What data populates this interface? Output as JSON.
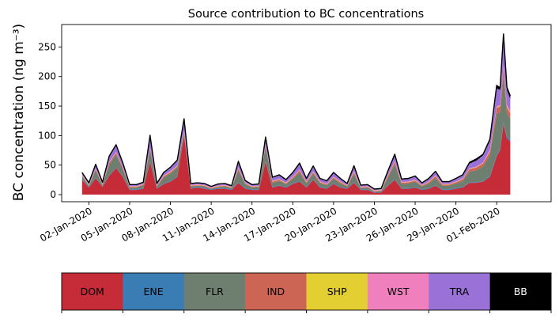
{
  "chart_data": {
    "type": "area",
    "title": "Source contribution to BC concentrations",
    "xlabel": "",
    "ylabel": "BC concentration (ng m⁻³)",
    "ylim": [
      -12,
      288
    ],
    "yticks": [
      0,
      50,
      100,
      150,
      200,
      250
    ],
    "xlim": [
      "2019-12-31",
      "2020-02-05"
    ],
    "xtick_labels": [
      "02-Jan-2020",
      "05-Jan-2020",
      "08-Jan-2020",
      "11-Jan-2020",
      "14-Jan-2020",
      "17-Jan-2020",
      "20-Jan-2020",
      "23-Jan-2020",
      "26-Jan-2020",
      "29-Jan-2020",
      "01-Feb-2020"
    ],
    "x_days_from_jan1": [
      0.5,
      1,
      1.5,
      2,
      2.5,
      3,
      3.5,
      4,
      4.5,
      5,
      5.5,
      6,
      6.5,
      7,
      7.5,
      8,
      8.5,
      9,
      9.5,
      10,
      10.5,
      11,
      11.5,
      12,
      12.5,
      13,
      13.5,
      14,
      14.5,
      15,
      15.5,
      16,
      16.5,
      17,
      17.5,
      18,
      18.5,
      19,
      19.5,
      20,
      20.5,
      21,
      21.5,
      22,
      22.5,
      23,
      23.5,
      24,
      24.5,
      25,
      25.5,
      26,
      26.5,
      27,
      27.5,
      28,
      28.5,
      29,
      29.5,
      30,
      30.5,
      31,
      31.25,
      31.5,
      31.75,
      32
    ],
    "series": [
      {
        "name": "DOM",
        "color": "#c62b38",
        "values": [
          25,
          12,
          28,
          13,
          32,
          45,
          30,
          8,
          8,
          10,
          55,
          10,
          18,
          22,
          30,
          100,
          10,
          12,
          10,
          8,
          10,
          10,
          8,
          20,
          10,
          8,
          8,
          55,
          12,
          15,
          12,
          18,
          22,
          12,
          25,
          12,
          10,
          18,
          12,
          10,
          20,
          8,
          8,
          3,
          4,
          15,
          25,
          10,
          10,
          12,
          8,
          10,
          15,
          8,
          8,
          10,
          12,
          20,
          20,
          22,
          30,
          65,
          75,
          120,
          95,
          90
        ]
      },
      {
        "name": "ENE",
        "color": "#3a7db5",
        "values": [
          1,
          1,
          1,
          1,
          1,
          1,
          1,
          1,
          1,
          1,
          1,
          1,
          1,
          1,
          1,
          1,
          1,
          1,
          1,
          1,
          1,
          1,
          1,
          1,
          1,
          1,
          1,
          1,
          1,
          1,
          1,
          1,
          1,
          1,
          1,
          1,
          1,
          1,
          1,
          1,
          1,
          1,
          1,
          1,
          1,
          1,
          1,
          1,
          1,
          1,
          1,
          1,
          1,
          1,
          1,
          1,
          1,
          1,
          1,
          1,
          2,
          2,
          2,
          3,
          3,
          3
        ]
      },
      {
        "name": "FLR",
        "color": "#6e7f6f",
        "values": [
          5,
          2,
          12,
          2,
          18,
          22,
          12,
          3,
          3,
          5,
          20,
          3,
          10,
          13,
          15,
          4,
          3,
          2,
          3,
          1,
          2,
          3,
          2,
          20,
          7,
          3,
          4,
          25,
          7,
          7,
          5,
          8,
          15,
          6,
          10,
          6,
          5,
          8,
          6,
          3,
          14,
          2,
          3,
          1,
          1,
          13,
          25,
          7,
          8,
          9,
          5,
          8,
          12,
          6,
          6,
          8,
          10,
          18,
          20,
          25,
          35,
          70,
          62,
          80,
          40,
          35
        ]
      },
      {
        "name": "IND",
        "color": "#cd6555",
        "values": [
          1,
          1,
          2,
          1,
          3,
          3,
          2,
          1,
          1,
          1,
          3,
          1,
          2,
          2,
          2,
          2,
          1,
          1,
          1,
          1,
          1,
          1,
          1,
          3,
          1,
          1,
          1,
          3,
          2,
          2,
          1,
          2,
          3,
          2,
          2,
          2,
          1,
          2,
          2,
          1,
          3,
          1,
          1,
          1,
          1,
          3,
          4,
          2,
          2,
          2,
          1,
          2,
          3,
          2,
          2,
          2,
          3,
          4,
          5,
          5,
          6,
          10,
          10,
          12,
          10,
          10
        ]
      },
      {
        "name": "SHP",
        "color": "#e3cf32",
        "values": [
          0.5,
          0.5,
          0.5,
          0.5,
          0.5,
          0.5,
          0.5,
          0.5,
          0.5,
          0.5,
          0.5,
          0.5,
          0.5,
          0.5,
          0.5,
          0.5,
          0.5,
          0.5,
          0.5,
          0.5,
          0.5,
          0.5,
          0.5,
          0.5,
          0.5,
          0.5,
          0.5,
          0.5,
          0.5,
          0.5,
          0.5,
          0.5,
          0.5,
          0.5,
          0.5,
          0.5,
          0.5,
          0.5,
          0.5,
          0.5,
          0.5,
          0.5,
          0.5,
          0.5,
          0.5,
          0.5,
          0.5,
          0.5,
          0.5,
          0.5,
          0.5,
          0.5,
          0.5,
          0.5,
          0.5,
          0.5,
          0.5,
          0.5,
          0.5,
          0.5,
          1,
          1,
          1,
          1,
          1,
          1
        ]
      },
      {
        "name": "WST",
        "color": "#ef7fbd",
        "values": [
          1,
          1,
          1,
          1,
          1,
          1,
          1,
          1,
          1,
          1,
          1,
          1,
          1,
          1,
          1,
          1,
          1,
          1,
          1,
          1,
          1,
          1,
          1,
          1,
          1,
          1,
          1,
          1,
          1,
          1,
          1,
          1,
          1,
          1,
          1,
          1,
          1,
          1,
          1,
          1,
          1,
          1,
          1,
          1,
          1,
          1,
          1,
          1,
          1,
          1,
          1,
          1,
          1,
          1,
          1,
          1,
          1,
          1,
          1,
          1,
          2,
          2,
          2,
          3,
          3,
          3
        ]
      },
      {
        "name": "TRA",
        "color": "#9a71d6",
        "values": [
          3,
          2,
          6,
          2,
          9,
          10,
          6,
          2,
          2,
          2,
          18,
          2,
          4,
          6,
          8,
          15,
          2,
          2,
          2,
          1,
          2,
          2,
          1,
          8,
          3,
          2,
          2,
          8,
          5,
          6,
          4,
          6,
          9,
          4,
          8,
          4,
          4,
          6,
          4,
          2,
          8,
          2,
          2,
          1,
          1,
          6,
          9,
          4,
          4,
          5,
          3,
          4,
          6,
          3,
          3,
          4,
          5,
          8,
          10,
          12,
          15,
          30,
          25,
          45,
          25,
          20
        ]
      },
      {
        "name": "BB",
        "color": "#000000",
        "values": [
          1,
          0.5,
          1,
          0.5,
          1,
          2,
          1,
          0.5,
          0.5,
          0.5,
          2,
          0.5,
          1,
          1,
          1,
          5,
          0.5,
          0.5,
          0.5,
          0.5,
          0.5,
          0.5,
          0.5,
          3,
          0.5,
          0.5,
          0.5,
          4,
          1,
          1,
          1,
          1,
          2,
          1,
          1,
          1,
          1,
          1,
          1,
          0.5,
          1.5,
          0.5,
          0.5,
          0.5,
          0.5,
          1,
          3,
          1,
          1,
          1,
          0.5,
          1,
          1,
          0.5,
          0.5,
          1,
          1,
          2,
          2,
          2,
          3,
          5,
          4,
          8,
          5,
          5
        ]
      }
    ],
    "total": {
      "name": "Total",
      "color": "#000000",
      "values": [
        37.5,
        20,
        51.5,
        21,
        65.5,
        84.5,
        53.5,
        17,
        17,
        21,
        100.5,
        19,
        37.5,
        46.5,
        58.5,
        128.5,
        19,
        20,
        19,
        14,
        18,
        19,
        15,
        56.5,
        24,
        17,
        18,
        97.5,
        29.5,
        33.5,
        25.5,
        37.5,
        53.5,
        27.5,
        48.5,
        27.5,
        23.5,
        37.5,
        27.5,
        19,
        49,
        16,
        17,
        9.5,
        10.5,
        40.5,
        68.5,
        26.5,
        27.5,
        31.5,
        20,
        27.5,
        39.5,
        22,
        22,
        27.5,
        33.5,
        54.5,
        60.5,
        68.5,
        94,
        185,
        181,
        272,
        182,
        167
      ]
    }
  },
  "legend": {
    "items": [
      {
        "label": "DOM",
        "color": "#c62b38",
        "text_color": "#000000"
      },
      {
        "label": "ENE",
        "color": "#3a7db5",
        "text_color": "#000000"
      },
      {
        "label": "FLR",
        "color": "#6e7f6f",
        "text_color": "#000000"
      },
      {
        "label": "IND",
        "color": "#cd6555",
        "text_color": "#000000"
      },
      {
        "label": "SHP",
        "color": "#e3cf32",
        "text_color": "#000000"
      },
      {
        "label": "WST",
        "color": "#ef7fbd",
        "text_color": "#000000"
      },
      {
        "label": "TRA",
        "color": "#9a71d6",
        "text_color": "#000000"
      },
      {
        "label": "BB",
        "color": "#000000",
        "text_color": "#ffffff"
      }
    ]
  }
}
